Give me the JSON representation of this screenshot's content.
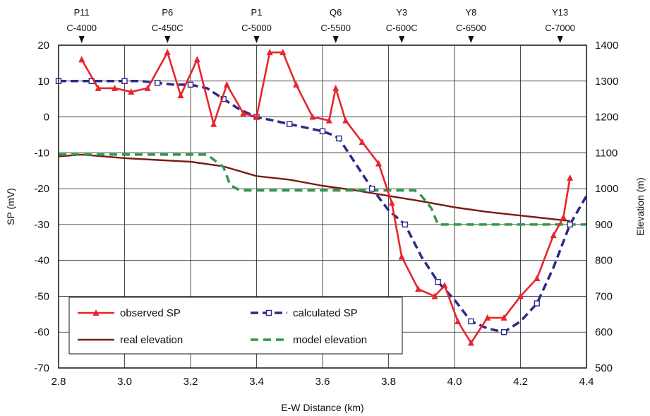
{
  "chart_data": {
    "type": "line",
    "xlabel": "E-W Distance (km)",
    "ylabel": "SP (mV)",
    "y2label": "Elevation (m)",
    "xlim": [
      2.8,
      4.4
    ],
    "ylim": [
      -70,
      20
    ],
    "y2lim": [
      500,
      1400
    ],
    "x_ticks": [
      "2.8",
      "3.0",
      "3.2",
      "3.4",
      "3.6",
      "3.8",
      "4.0",
      "4.2",
      "4.4"
    ],
    "y_ticks": [
      "20",
      "10",
      "0",
      "-10",
      "-20",
      "-30",
      "-40",
      "-50",
      "-60",
      "-70"
    ],
    "y2_ticks": [
      "1400",
      "1300",
      "1200",
      "1100",
      "1000",
      "900",
      "800",
      "700",
      "600",
      "500"
    ],
    "grid": true,
    "legend_position": "bottom-left",
    "stations": [
      {
        "name": "P11",
        "code": "C-4000",
        "x": 2.87
      },
      {
        "name": "P6",
        "code": "C-450C",
        "x": 3.13
      },
      {
        "name": "P1",
        "code": "C-5000",
        "x": 3.4
      },
      {
        "name": "Q6",
        "code": "C-5500",
        "x": 3.64
      },
      {
        "name": "Y3",
        "code": "C-600C",
        "x": 3.84
      },
      {
        "name": "Y8",
        "code": "C-6500",
        "x": 4.05
      },
      {
        "name": "Y13",
        "code": "C-7000",
        "x": 4.32
      }
    ],
    "series": [
      {
        "name": "observed SP",
        "axis": "left",
        "color": "#e8242c",
        "marker": "triangle",
        "x": [
          2.87,
          2.92,
          2.97,
          3.02,
          3.07,
          3.13,
          3.17,
          3.22,
          3.27,
          3.31,
          3.36,
          3.4,
          3.44,
          3.48,
          3.52,
          3.57,
          3.62,
          3.64,
          3.67,
          3.72,
          3.77,
          3.81,
          3.84,
          3.89,
          3.94,
          3.97,
          4.01,
          4.05,
          4.1,
          4.15,
          4.2,
          4.25,
          4.3,
          4.33,
          4.35
        ],
        "values": [
          16,
          8,
          8,
          7,
          8,
          18,
          6,
          16,
          -2,
          9,
          1,
          0,
          18,
          18,
          9,
          0,
          -1,
          8,
          -1,
          -7,
          -13,
          -24,
          -39,
          -48,
          -50,
          -47,
          -57,
          -63,
          -56,
          -56,
          -50,
          -45,
          -33,
          -28,
          -17
        ]
      },
      {
        "name": "calculated SP",
        "axis": "left",
        "color": "#2b2a8a",
        "marker": "square",
        "x": [
          2.8,
          2.85,
          2.9,
          2.95,
          3.0,
          3.05,
          3.1,
          3.15,
          3.2,
          3.25,
          3.3,
          3.35,
          3.4,
          3.45,
          3.5,
          3.55,
          3.6,
          3.63,
          3.65,
          3.7,
          3.75,
          3.8,
          3.85,
          3.9,
          3.95,
          4.0,
          4.05,
          4.1,
          4.15,
          4.2,
          4.25,
          4.3,
          4.35,
          4.4
        ],
        "values": [
          10,
          10,
          10,
          10,
          10,
          10,
          9.5,
          9,
          9,
          8,
          5,
          2,
          0,
          -1,
          -2,
          -3,
          -4,
          -5,
          -6,
          -13,
          -20,
          -26,
          -30,
          -39,
          -46,
          -51,
          -57,
          -59,
          -60,
          -57,
          -52,
          -42,
          -30,
          -22
        ]
      },
      {
        "name": "real elevation",
        "axis": "right",
        "color": "#7a1a14",
        "marker": "none",
        "x": [
          2.8,
          2.87,
          3.0,
          3.1,
          3.2,
          3.3,
          3.4,
          3.5,
          3.6,
          3.7,
          3.8,
          3.9,
          4.0,
          4.1,
          4.2,
          4.3,
          4.35
        ],
        "values": [
          1090,
          1095,
          1085,
          1080,
          1075,
          1062,
          1035,
          1025,
          1008,
          995,
          980,
          965,
          948,
          935,
          925,
          915,
          910
        ]
      },
      {
        "name": "model elevation",
        "axis": "right",
        "color": "#2e9b4a",
        "marker": "none",
        "x": [
          2.8,
          3.25,
          3.3,
          3.32,
          3.35,
          3.88,
          3.9,
          3.93,
          3.95,
          4.4
        ],
        "values": [
          1095,
          1095,
          1060,
          1010,
          995,
          995,
          980,
          945,
          900,
          900
        ]
      }
    ]
  }
}
